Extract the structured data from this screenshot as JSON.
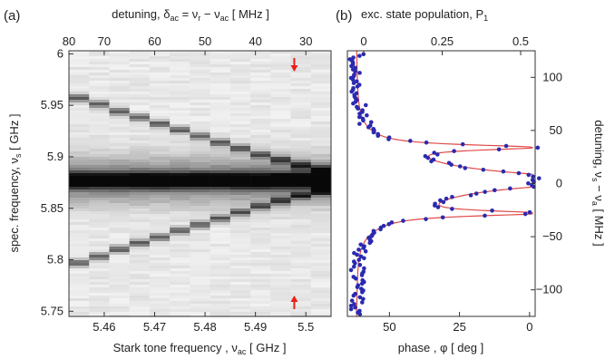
{
  "chart_data": [
    {
      "type": "heatmap",
      "panel_label": "(a)",
      "xlabel": "Stark  tone frequency ,  ν",
      "xlabel_sub": "ac",
      "xlabel_unit": "  [ GHz ]",
      "ylabel": "spec. frequency, ν",
      "ylabel_sub": "s",
      "ylabel_unit": "  [ GHz ]",
      "top_xlabel_a": "detuning,  δ",
      "top_xlabel_b": " = ν",
      "top_xlabel_c": " − ν",
      "top_xlabel_d": "  [ MHz ]",
      "top_sub_ac": "ac",
      "top_sub_r": "r",
      "xlim": [
        5.453,
        5.505
      ],
      "ylim": [
        5.745,
        6.003
      ],
      "x_ticks": [
        5.46,
        5.47,
        5.48,
        5.49,
        5.5
      ],
      "x_tick_labels": [
        "5.46",
        "5.47",
        "5.48",
        "5.49",
        "5.5"
      ],
      "y_ticks": [
        5.75,
        5.8,
        5.85,
        5.9,
        5.95,
        6.0
      ],
      "y_tick_labels": [
        "5.75",
        "5.8",
        "5.85",
        "5.9",
        "5.95",
        "6"
      ],
      "top_ticks_freq": [
        5.45,
        5.46,
        5.47,
        5.48,
        5.49,
        5.5
      ],
      "top_tick_labels": [
        "80",
        "70",
        "60",
        "50",
        "40",
        "30"
      ],
      "columns_x": [
        5.455,
        5.459,
        5.463,
        5.467,
        5.471,
        5.475,
        5.479,
        5.483,
        5.487,
        5.491,
        5.495,
        5.499,
        5.503
      ],
      "main_line_y": 5.877,
      "upper_sideband_y": [
        5.957,
        5.951,
        5.944,
        5.938,
        5.932,
        5.926,
        5.92,
        5.914,
        5.908,
        5.902,
        5.897,
        5.892,
        5.888
      ],
      "lower_sideband_y": [
        5.797,
        5.803,
        5.81,
        5.816,
        5.822,
        5.828,
        5.834,
        5.84,
        5.846,
        5.852,
        5.857,
        5.862,
        5.866
      ],
      "arrow_x": 5.4977,
      "arrow_color": "#e8201a"
    },
    {
      "type": "scatter",
      "panel_label": "(b)",
      "top_xlabel": "exc. state population, P",
      "top_xlabel_sub": "1",
      "xlabel": "phase ,  φ  [ deg ]",
      "ylabel_a": "detuning,  ν",
      "ylabel_sub_s": "s",
      "ylabel_b": " − ν",
      "ylabel_sub_a": "a",
      "ylabel_unit": "  [ MHz ]",
      "phase_lim": [
        65,
        -2
      ],
      "population_ticks": [
        0,
        0.25,
        0.5
      ],
      "population_tick_labels": [
        "0",
        "0.25",
        "0.5"
      ],
      "phase_ticks": [
        50,
        25,
        0
      ],
      "phase_tick_labels": [
        "50",
        "25",
        "0"
      ],
      "ylim": [
        -125,
        125
      ],
      "y_ticks": [
        -100,
        -50,
        0,
        50,
        100
      ],
      "y_tick_labels": [
        "−100",
        "−50",
        "0",
        "50",
        "100"
      ],
      "points_color": "#2a2ab0",
      "fit_color": "#e04848",
      "peaks": [
        {
          "center": 34,
          "width": 3,
          "phase_at_peak": 10
        },
        {
          "center": 3,
          "width": 8,
          "phase_at_peak": 2
        },
        {
          "center": -28,
          "width": 3,
          "phase_at_peak": 12
        }
      ],
      "baseline_phase": 62
    }
  ]
}
